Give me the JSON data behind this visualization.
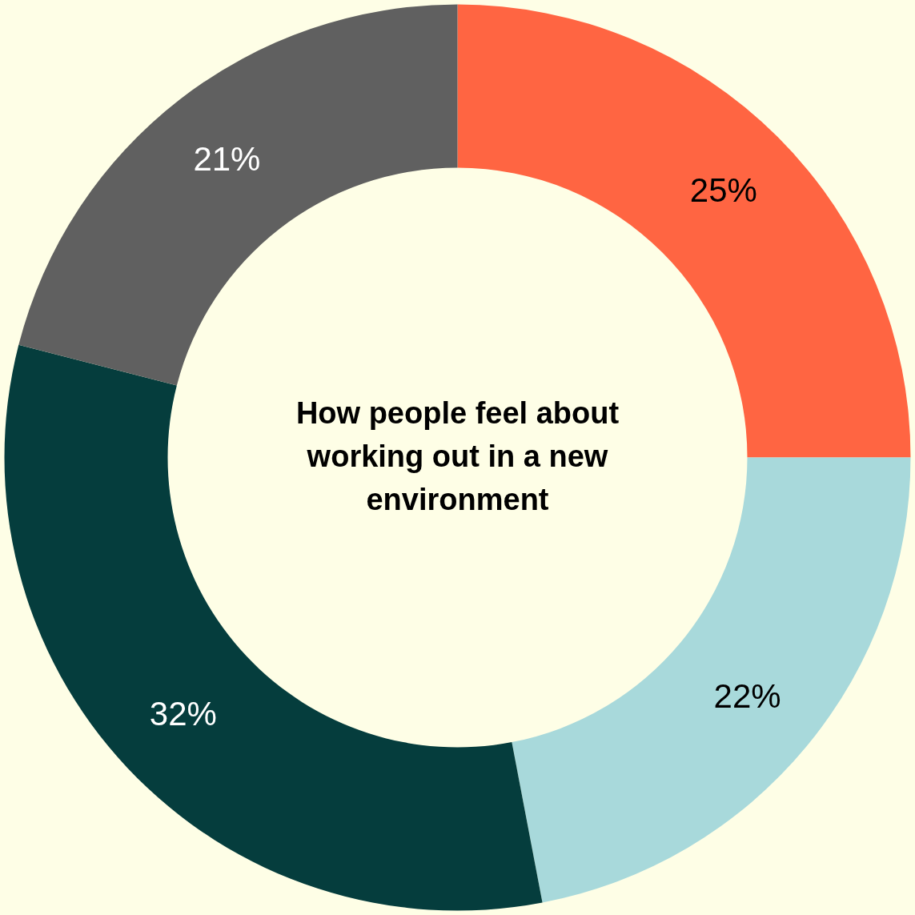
{
  "chart_data": {
    "type": "donut",
    "title": "How people feel about working out in a new environment",
    "categories": [
      null,
      null,
      null,
      null
    ],
    "values": [
      25,
      22,
      32,
      21
    ],
    "colors": [
      "#ff6542",
      "#a8d9db",
      "#053d3d",
      "#606060"
    ],
    "value_labels": [
      "25%",
      "22%",
      "32%",
      "21%"
    ]
  }
}
